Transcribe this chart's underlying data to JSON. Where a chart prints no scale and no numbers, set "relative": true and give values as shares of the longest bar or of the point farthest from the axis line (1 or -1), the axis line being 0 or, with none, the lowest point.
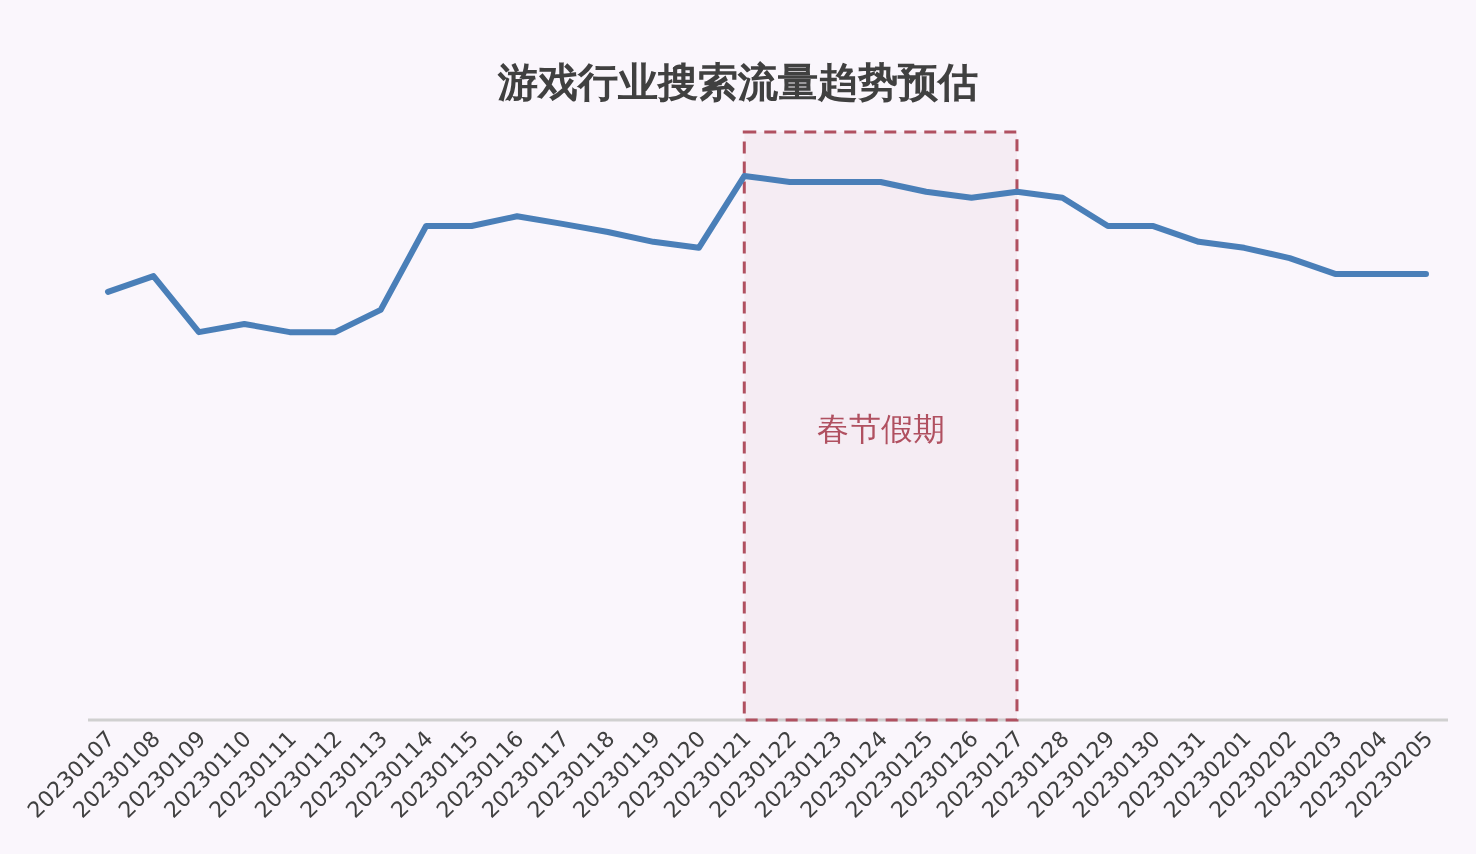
{
  "chart_data": {
    "type": "line",
    "title": "游戏行业搜索流量趋势预估",
    "relative": true,
    "categories": [
      "20230107",
      "20230108",
      "20230109",
      "20230110",
      "20230111",
      "20230112",
      "20230113",
      "20230114",
      "20230115",
      "20230116",
      "20230117",
      "20230118",
      "20230119",
      "20230120",
      "20230121",
      "20230122",
      "20230123",
      "20230124",
      "20230125",
      "20230126",
      "20230127",
      "20230128",
      "20230129",
      "20230130",
      "20230131",
      "20230201",
      "20230202",
      "20230203",
      "20230204",
      "20230205"
    ],
    "series": [
      {
        "color": "#4a7fb8",
        "values": [
          0.787,
          0.816,
          0.713,
          0.728,
          0.713,
          0.713,
          0.754,
          0.908,
          0.908,
          0.926,
          0.912,
          0.897,
          0.879,
          0.868,
          1,
          0.989,
          0.989,
          0.989,
          0.971,
          0.96,
          0.971,
          0.96,
          0.908,
          0.908,
          0.879,
          0.868,
          0.849,
          0.82,
          0.82,
          0.82
        ]
      }
    ],
    "bands": [
      {
        "axis": "x",
        "from": "20230121",
        "to": "20230127",
        "label": "春节假期",
        "color": "#b05060"
      }
    ],
    "marker": "none",
    "line_style": "solid"
  }
}
